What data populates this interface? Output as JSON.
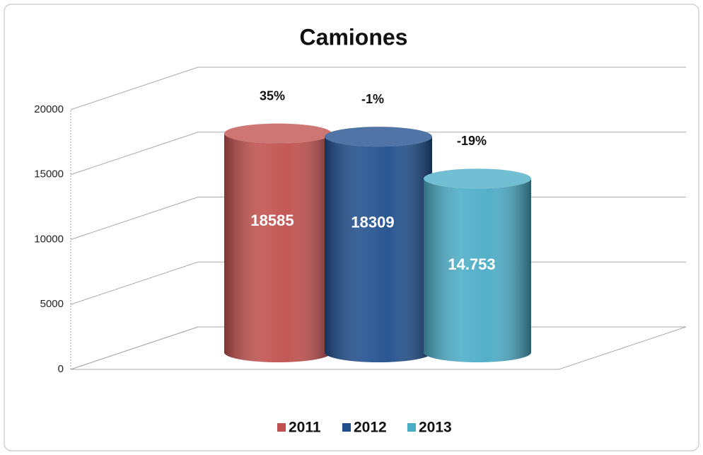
{
  "chart_data": {
    "type": "bar3d",
    "title": "Camiones",
    "series": [
      {
        "name": "2011",
        "color": "#c0504d",
        "values": [
          18585
        ]
      },
      {
        "name": "2012",
        "color": "#1f4e8c",
        "values": [
          18309
        ]
      },
      {
        "name": "2013",
        "color": "#4bacc6",
        "values": [
          14753
        ],
        "value_labels": [
          "14.753"
        ]
      }
    ],
    "annotations": [
      "35%",
      "-1%",
      "-19%"
    ],
    "ylim": [
      0,
      20000
    ],
    "yticks": [
      0,
      5000,
      10000,
      15000,
      20000
    ],
    "grid": true
  }
}
